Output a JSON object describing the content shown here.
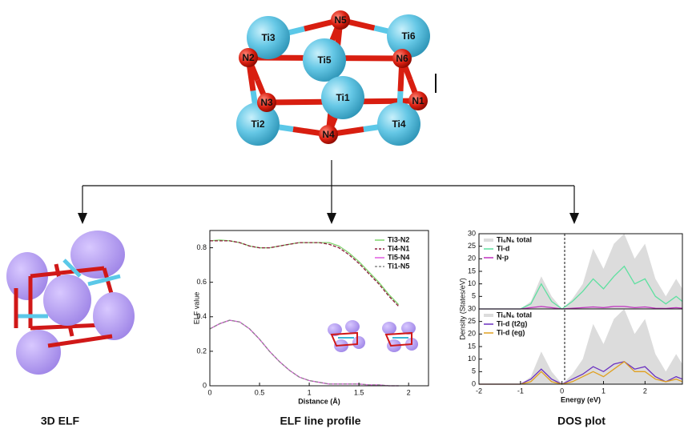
{
  "nodes": [
    "Ti3",
    "N5",
    "Ti6",
    "N2",
    "Ti5",
    "N6",
    "N3",
    "Ti1",
    "N1",
    "Ti2",
    "N4",
    "Ti4"
  ],
  "captions": [
    "3D ELF",
    "ELF line profile",
    "DOS plot"
  ],
  "chart_data": [
    {
      "type": "line",
      "xlabel": "Distance (Å)",
      "ylabel": "ELF value",
      "xlim": [
        0,
        2.2
      ],
      "ylim": [
        0,
        0.9
      ],
      "xticks": [
        0,
        0.5,
        1,
        1.5,
        2
      ],
      "yticks": [
        0,
        0.2,
        0.4,
        0.6,
        0.8
      ],
      "x": [
        0,
        0.1,
        0.2,
        0.3,
        0.4,
        0.5,
        0.6,
        0.7,
        0.8,
        0.9,
        1.0,
        1.1,
        1.2,
        1.3,
        1.4,
        1.5,
        1.6,
        1.7,
        1.8,
        1.9
      ],
      "series": [
        {
          "name": "Ti3-N2",
          "color": "#7ed36b",
          "values": [
            0.84,
            0.845,
            0.84,
            0.83,
            0.81,
            0.8,
            0.8,
            0.81,
            0.82,
            0.83,
            0.83,
            0.83,
            0.83,
            0.81,
            0.77,
            0.72,
            0.66,
            0.6,
            0.53,
            0.47
          ]
        },
        {
          "name": "Ti4-N1",
          "color": "#8b1a3a",
          "dash": true,
          "values": [
            0.84,
            0.84,
            0.84,
            0.83,
            0.81,
            0.8,
            0.8,
            0.81,
            0.82,
            0.83,
            0.83,
            0.83,
            0.82,
            0.8,
            0.76,
            0.71,
            0.65,
            0.59,
            0.52,
            0.46
          ]
        },
        {
          "name": "Ti5-N4",
          "color": "#e05ce0",
          "values": [
            0.33,
            0.36,
            0.38,
            0.37,
            0.33,
            0.27,
            0.2,
            0.14,
            0.09,
            0.05,
            0.03,
            0.02,
            0.01,
            0.01,
            0.01,
            0.01,
            0.005,
            0.005,
            0,
            0
          ]
        },
        {
          "name": "Ti1-N5",
          "color": "#888888",
          "dash": true,
          "values": [
            0.33,
            0.36,
            0.38,
            0.37,
            0.33,
            0.27,
            0.2,
            0.14,
            0.09,
            0.05,
            0.03,
            0.02,
            0.01,
            0.01,
            0.01,
            0.01,
            0.005,
            0.005,
            0,
            0
          ]
        }
      ]
    },
    {
      "type": "line",
      "ylabel": "Density (States/eV)",
      "xlim": [
        -2,
        2.9
      ],
      "ylim": [
        0,
        30
      ],
      "yticks": [
        5,
        10,
        15,
        20,
        25,
        30
      ],
      "x": [
        -2,
        -1.5,
        -1.25,
        -1,
        -0.75,
        -0.5,
        -0.25,
        0,
        0.25,
        0.5,
        0.75,
        1,
        1.25,
        1.5,
        1.75,
        2,
        2.25,
        2.5,
        2.75,
        2.9
      ],
      "series": [
        {
          "name": "Ti₆N₆ total",
          "color": "#dcdcdc",
          "area": true,
          "values": [
            0,
            0,
            0,
            0,
            3,
            13,
            5,
            0,
            4,
            10,
            24,
            16,
            26,
            30,
            20,
            26,
            12,
            5,
            12,
            8
          ]
        },
        {
          "name": "Ti-d",
          "color": "#5ee0a0",
          "values": [
            0,
            0,
            0,
            0,
            2,
            10,
            3,
            0,
            3,
            7,
            12,
            8,
            13,
            17,
            10,
            12,
            5,
            2,
            5,
            3
          ]
        },
        {
          "name": "N-p",
          "color": "#c030c0",
          "values": [
            0,
            0,
            0,
            0,
            0.5,
            1,
            0.5,
            0,
            0.3,
            0.5,
            0.8,
            0.5,
            1,
            1,
            0.5,
            0.8,
            0.3,
            0.2,
            0.5,
            0.3
          ]
        }
      ]
    },
    {
      "type": "line",
      "xlabel": "Energy (eV)",
      "xlim": [
        -2,
        2.9
      ],
      "ylim": [
        0,
        30
      ],
      "xticks": [
        -2,
        -1,
        0,
        1,
        2
      ],
      "yticks": [
        0,
        5,
        10,
        15,
        20,
        25,
        30
      ],
      "x": [
        -2,
        -1.5,
        -1.25,
        -1,
        -0.75,
        -0.5,
        -0.25,
        0,
        0.25,
        0.5,
        0.75,
        1,
        1.25,
        1.5,
        1.75,
        2,
        2.25,
        2.5,
        2.75,
        2.9
      ],
      "series": [
        {
          "name": "Ti₆N₆ total",
          "color": "#dcdcdc",
          "area": true,
          "values": [
            0,
            0,
            0,
            0,
            3,
            13,
            5,
            0,
            4,
            10,
            24,
            16,
            26,
            30,
            20,
            26,
            12,
            5,
            12,
            8
          ]
        },
        {
          "name": "Ti-d (t2g)",
          "color": "#6a30c0",
          "values": [
            0,
            0,
            0,
            0,
            2,
            6,
            2,
            0,
            2,
            4,
            7,
            5,
            8,
            9,
            6,
            7,
            3,
            1,
            3,
            2
          ]
        },
        {
          "name": "Ti-d (eg)",
          "color": "#e0a020",
          "values": [
            0,
            0,
            0,
            0,
            1,
            5,
            1,
            0,
            1,
            3,
            5,
            3,
            6,
            9,
            5,
            5,
            2,
            1,
            2,
            1
          ]
        }
      ]
    }
  ]
}
